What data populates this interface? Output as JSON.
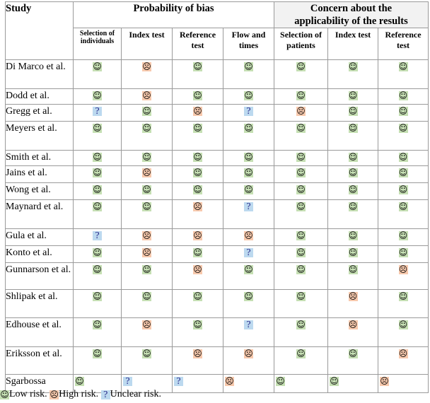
{
  "header": {
    "study": "Study",
    "probability": "Probability of bias",
    "concern_line1": "Concern about the",
    "concern_line2": "applicability of the results",
    "prob_cols": [
      "Selection of individuals",
      "Index test",
      "Reference test",
      "Flow and times"
    ],
    "concern_cols": [
      "Selection of patients",
      "Index test",
      "Reference test"
    ]
  },
  "icons": {
    "low": "☺",
    "high": "☹",
    "unclear": "?"
  },
  "colors": {
    "low": "#c5dfb3",
    "high": "#f7c9ad",
    "unclear": "#bcd9ef"
  },
  "rows": [
    {
      "name": "Di Marco et al.",
      "r": [
        "low",
        "high",
        "low",
        "low",
        "low",
        "low",
        "low"
      ]
    },
    {
      "name": "Dodd et al.",
      "r": [
        "low",
        "high",
        "low",
        "low",
        "low",
        "low",
        "low"
      ]
    },
    {
      "name": "Gregg et al.",
      "r": [
        "unclear",
        "low",
        "high",
        "unclear",
        "high",
        "low",
        "low"
      ]
    },
    {
      "name": "Meyers et al.",
      "r": [
        "low",
        "low",
        "low",
        "low",
        "low",
        "low",
        "low"
      ]
    },
    {
      "name": "Smith et al.",
      "r": [
        "low",
        "low",
        "low",
        "low",
        "low",
        "low",
        "low"
      ]
    },
    {
      "name": "Jains et al.",
      "r": [
        "low",
        "high",
        "low",
        "low",
        "low",
        "low",
        "low"
      ]
    },
    {
      "name": "Wong et al.",
      "r": [
        "low",
        "low",
        "low",
        "low",
        "low",
        "low",
        "low"
      ]
    },
    {
      "name": "Maynard et al.",
      "r": [
        "low",
        "low",
        "high",
        "unclear",
        "low",
        "low",
        "low"
      ]
    },
    {
      "name": "Gula et al.",
      "r": [
        "unclear",
        "high",
        "high",
        "high",
        "low",
        "low",
        "low"
      ]
    },
    {
      "name": "Konto et al.",
      "r": [
        "low",
        "high",
        "low",
        "unclear",
        "low",
        "low",
        "low"
      ]
    },
    {
      "name": "Gunnarson et al.",
      "r": [
        "low",
        "low",
        "high",
        "low",
        "low",
        "low",
        "high"
      ]
    },
    {
      "name": "Shlipak et al.",
      "r": [
        "low",
        "low",
        "low",
        "low",
        "low",
        "high",
        "low"
      ]
    },
    {
      "name": "Edhouse et al.",
      "r": [
        "low",
        "high",
        "low",
        "unclear",
        "low",
        "high",
        "low"
      ]
    },
    {
      "name": "Eriksson et al.",
      "r": [
        "low",
        "low",
        "high",
        "high",
        "low",
        "low",
        "high"
      ]
    },
    {
      "name": "Sgarbossa",
      "r": [
        "low",
        "unclear",
        "unclear",
        "high",
        "low",
        "low",
        "high"
      ]
    }
  ],
  "legend": {
    "low": "Low risk.",
    "high": "High risk.",
    "unclear": "Unclear risk."
  }
}
